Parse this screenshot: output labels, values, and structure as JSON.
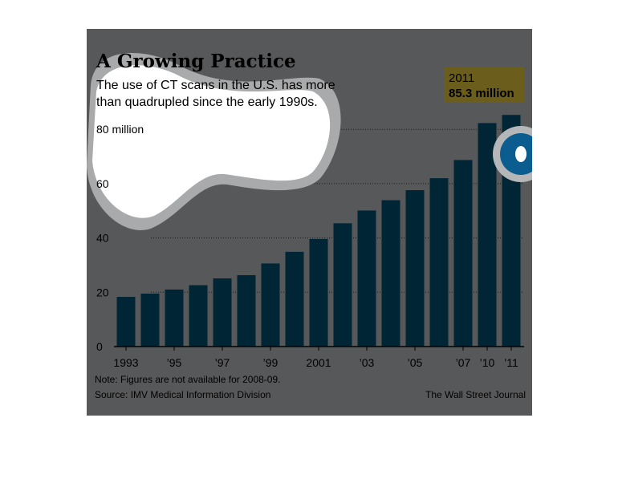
{
  "chart_data": {
    "type": "bar",
    "title": "A Growing Practice",
    "subtitle_lines": [
      "The use of CT scans in the U.S. has more",
      "than quadrupled since the early 1990s."
    ],
    "x": [
      1993,
      1994,
      1995,
      1996,
      1997,
      1998,
      1999,
      2000,
      2001,
      2002,
      2003,
      2004,
      2005,
      2006,
      2007,
      2010,
      2011
    ],
    "values": [
      18.3,
      19.5,
      21.0,
      22.6,
      25.1,
      26.3,
      30.6,
      34.9,
      39.6,
      45.4,
      50.1,
      53.9,
      57.6,
      62.0,
      68.7,
      82.3,
      85.3
    ],
    "x_tick_labels": [
      {
        "x": 1993,
        "label": "1993"
      },
      {
        "x": 1995,
        "label": "’95"
      },
      {
        "x": 1997,
        "label": "’97"
      },
      {
        "x": 1999,
        "label": "’99"
      },
      {
        "x": 2001,
        "label": "2001"
      },
      {
        "x": 2003,
        "label": "’03"
      },
      {
        "x": 2005,
        "label": "’05"
      },
      {
        "x": 2007,
        "label": "’07"
      },
      {
        "x": 2010,
        "label": "’10"
      },
      {
        "x": 2011,
        "label": "’11"
      }
    ],
    "y_ticks": [
      {
        "value": 0,
        "label": "0"
      },
      {
        "value": 20,
        "label": "20"
      },
      {
        "value": 40,
        "label": "40"
      },
      {
        "value": 60,
        "label": "60"
      },
      {
        "value": 80,
        "label": "80 million"
      }
    ],
    "ylim": [
      0,
      80
    ],
    "grid": true,
    "callout": {
      "x": 2011,
      "year_label": "2011",
      "value_label": "85.3 million"
    },
    "note": "Note: Figures are not available for 2008-09.",
    "source": "Source: IMV Medical Information Division",
    "credit": "The Wall Street Journal"
  },
  "colors": {
    "panel_bg": "#57585a",
    "bar": "#002535",
    "callout_bg": "#6b5d1c",
    "gridline": "#1a1a1a",
    "axis": "#000000",
    "occluder_fill": "#ffffff",
    "occluder_halo": "#a9aaab",
    "marker_outer": "#0a5d8e",
    "marker_inner": "#ffffff"
  }
}
